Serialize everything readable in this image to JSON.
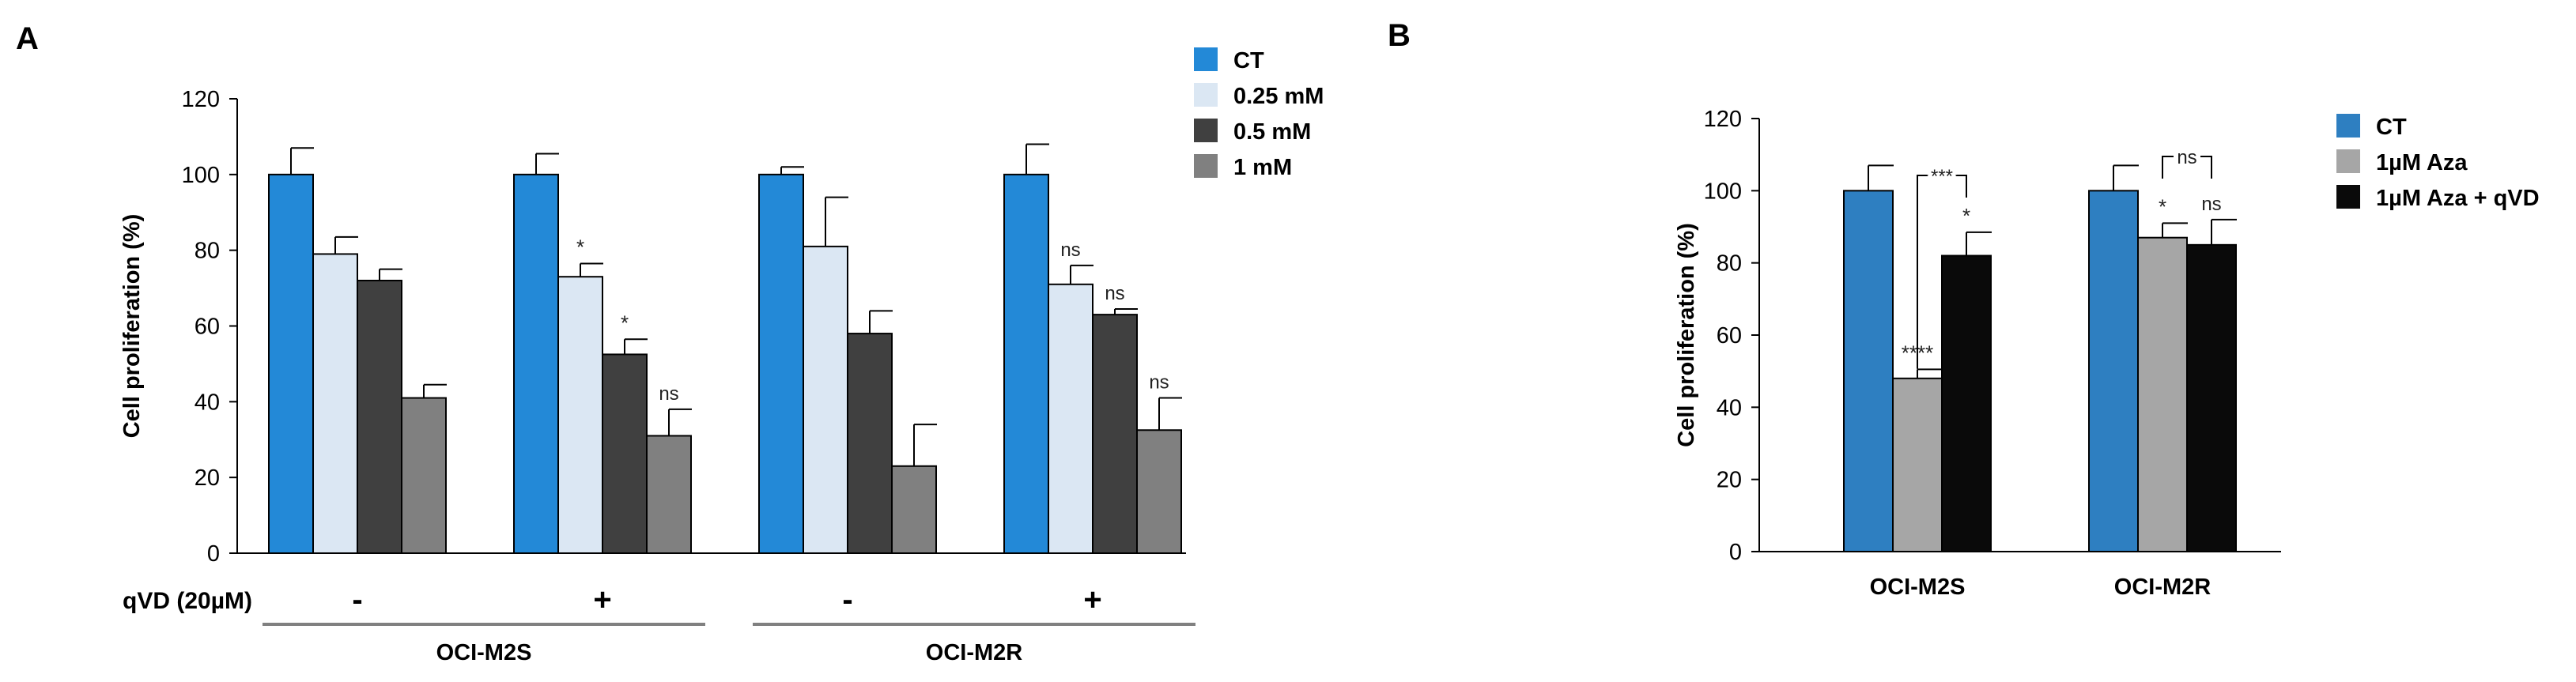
{
  "chart_data": [
    {
      "panel": "A",
      "type": "bar",
      "xlabel": "",
      "ylabel": "Cell proliferation (%)",
      "ylim": [
        0,
        120
      ],
      "yticks": [
        0,
        20,
        40,
        60,
        80,
        100,
        120
      ],
      "grid": false,
      "legend": "top-right",
      "row_label": "qVD (20µM)",
      "groups": [
        {
          "qvd": "-",
          "cell_line": "OCI-M2S"
        },
        {
          "qvd": "+",
          "cell_line": "OCI-M2S"
        },
        {
          "qvd": "-",
          "cell_line": "OCI-M2R"
        },
        {
          "qvd": "+",
          "cell_line": "OCI-M2R"
        }
      ],
      "cell_lines": [
        "OCI-M2S",
        "OCI-M2R"
      ],
      "series": [
        {
          "name": "CT",
          "color": "#2389d7",
          "values": [
            100,
            100,
            100,
            100
          ],
          "errors": [
            7,
            5.5,
            2,
            8
          ],
          "labels": [
            "",
            "",
            "",
            ""
          ]
        },
        {
          "name": "0.25 mM",
          "color": "#dbe7f3",
          "values": [
            79,
            73,
            81,
            71
          ],
          "errors": [
            4.5,
            3.5,
            13,
            5
          ],
          "labels": [
            "",
            "*",
            "",
            "ns"
          ]
        },
        {
          "name": "0.5 mM",
          "color": "#404040",
          "values": [
            72,
            52.5,
            58,
            63
          ],
          "errors": [
            3,
            4,
            6,
            1.5
          ],
          "labels": [
            "",
            "*",
            "",
            "ns"
          ]
        },
        {
          "name": "1 mM",
          "color": "#808080",
          "values": [
            41,
            31,
            23,
            32.5
          ],
          "errors": [
            3.5,
            7,
            11,
            8.5
          ],
          "labels": [
            "",
            "ns",
            "",
            "ns"
          ]
        }
      ]
    },
    {
      "panel": "B",
      "type": "bar",
      "xlabel": "",
      "ylabel": "Cell proliferation (%)",
      "ylim": [
        0,
        120
      ],
      "yticks": [
        0,
        20,
        40,
        60,
        80,
        100,
        120
      ],
      "grid": false,
      "legend": "top-right",
      "categories": [
        "OCI-M2S",
        "OCI-M2R"
      ],
      "series": [
        {
          "name": "CT",
          "color": "#2e7fc1",
          "values": [
            100,
            100
          ],
          "errors": [
            7,
            7
          ],
          "labels": [
            "",
            ""
          ]
        },
        {
          "name": "1µM Aza",
          "color": "#a6a6a6",
          "values": [
            48,
            87
          ],
          "errors": [
            2.5,
            4
          ],
          "labels": [
            "****",
            "*"
          ]
        },
        {
          "name": "1µM Aza + qVD",
          "color": "#0a0a0a",
          "values": [
            82,
            85
          ],
          "errors": [
            6.5,
            7
          ],
          "labels": [
            "*",
            "ns"
          ]
        }
      ],
      "brackets": [
        {
          "group": 0,
          "from_series": 1,
          "to_series": 2,
          "label": "***"
        },
        {
          "group": 1,
          "from_series": 1,
          "to_series": 2,
          "label": "ns"
        }
      ]
    }
  ]
}
